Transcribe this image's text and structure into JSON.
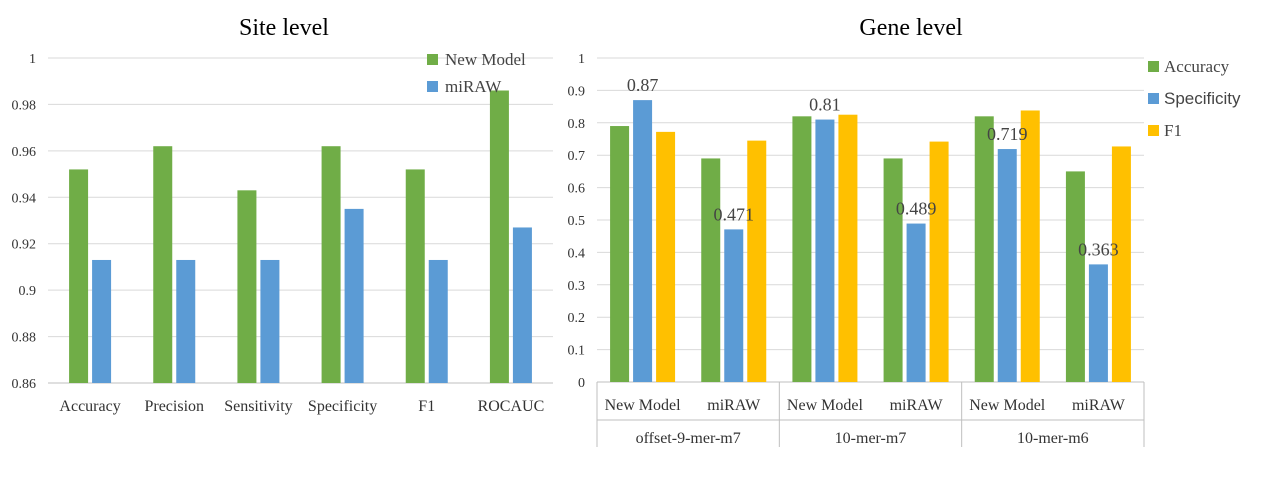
{
  "colors": {
    "accuracy": "#70AD47",
    "specificity": "#5B9BD5",
    "f1": "#FFC000",
    "grid": "#D9D9D9",
    "axis": "#BFBFBF"
  },
  "chart_data": [
    {
      "type": "bar",
      "title": "Site level",
      "categories": [
        "Accuracy",
        "Precision",
        "Sensitivity",
        "Specificity",
        "F1",
        "ROCAUC"
      ],
      "series": [
        {
          "name": "New Model",
          "color": "#70AD47",
          "values": [
            0.952,
            0.962,
            0.943,
            0.962,
            0.952,
            0.986
          ]
        },
        {
          "name": "miRAW",
          "color": "#5B9BD5",
          "values": [
            0.913,
            0.913,
            0.913,
            0.935,
            0.913,
            0.927
          ]
        }
      ],
      "ylim": [
        0.86,
        1
      ],
      "yticks": [
        "0.86",
        "0.88",
        "0.9",
        "0.92",
        "0.94",
        "0.96",
        "0.98",
        "1"
      ],
      "legend_position": "top-right",
      "grid": true
    },
    {
      "type": "bar",
      "title": "Gene level",
      "groups": [
        "offset-9-mer-m7",
        "10-mer-m7",
        "10-mer-m6"
      ],
      "categories": [
        "New Model",
        "miRAW",
        "New Model",
        "miRAW",
        "New Model",
        "miRAW"
      ],
      "series": [
        {
          "name": "Accuracy",
          "color": "#70AD47",
          "values": [
            0.79,
            0.69,
            0.82,
            0.69,
            0.82,
            0.65
          ]
        },
        {
          "name": "Specificity",
          "color": "#5B9BD5",
          "values": [
            0.87,
            0.471,
            0.81,
            0.489,
            0.719,
            0.363
          ]
        },
        {
          "name": "F1",
          "color": "#FFC000",
          "values": [
            0.772,
            0.745,
            0.825,
            0.742,
            0.838,
            0.727
          ]
        }
      ],
      "data_labels": [
        {
          "series": 1,
          "index": 0,
          "text": "0.87"
        },
        {
          "series": 1,
          "index": 1,
          "text": "0.471"
        },
        {
          "series": 1,
          "index": 2,
          "text": "0.81"
        },
        {
          "series": 1,
          "index": 3,
          "text": "0.489"
        },
        {
          "series": 1,
          "index": 4,
          "text": "0.719"
        },
        {
          "series": 1,
          "index": 5,
          "text": "0.363"
        }
      ],
      "ylim": [
        0,
        1
      ],
      "yticks": [
        "0",
        "0.1",
        "0.2",
        "0.3",
        "0.4",
        "0.5",
        "0.6",
        "0.7",
        "0.8",
        "0.9",
        "1"
      ],
      "legend_position": "right",
      "grid": true
    }
  ]
}
